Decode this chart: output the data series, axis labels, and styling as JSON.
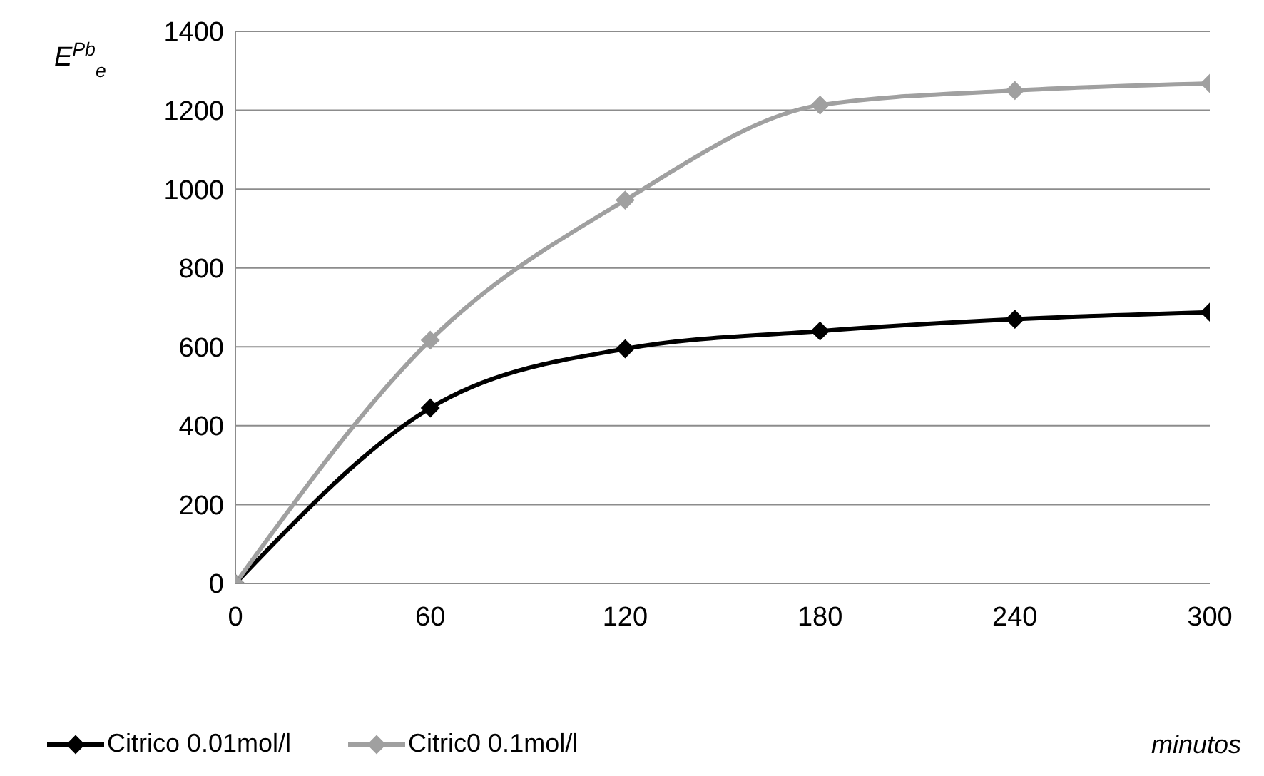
{
  "chart_data": {
    "type": "line",
    "xlabel": "minutos",
    "ylabel": "E$^{Pb}$$_{e}$",
    "x": [
      0,
      60,
      120,
      180,
      240,
      300
    ],
    "series": [
      {
        "name": "Citrico 0.01mol/l",
        "color": "#000000",
        "values": [
          0,
          445,
          595,
          640,
          670,
          688
        ]
      },
      {
        "name": "Citric0 0.1mol/l",
        "color": "#a0a0a0",
        "values": [
          0,
          617,
          972,
          1213,
          1250,
          1268
        ]
      }
    ],
    "xlim": [
      0,
      300
    ],
    "xticks": [
      0,
      60,
      120,
      180,
      240,
      300
    ],
    "ylim": [
      0,
      1400
    ],
    "yticks": [
      0,
      200,
      400,
      600,
      800,
      1000,
      1200,
      1400
    ],
    "grid": "y",
    "legend": "bottom left",
    "marker": "diamond",
    "line_style": "solid"
  }
}
